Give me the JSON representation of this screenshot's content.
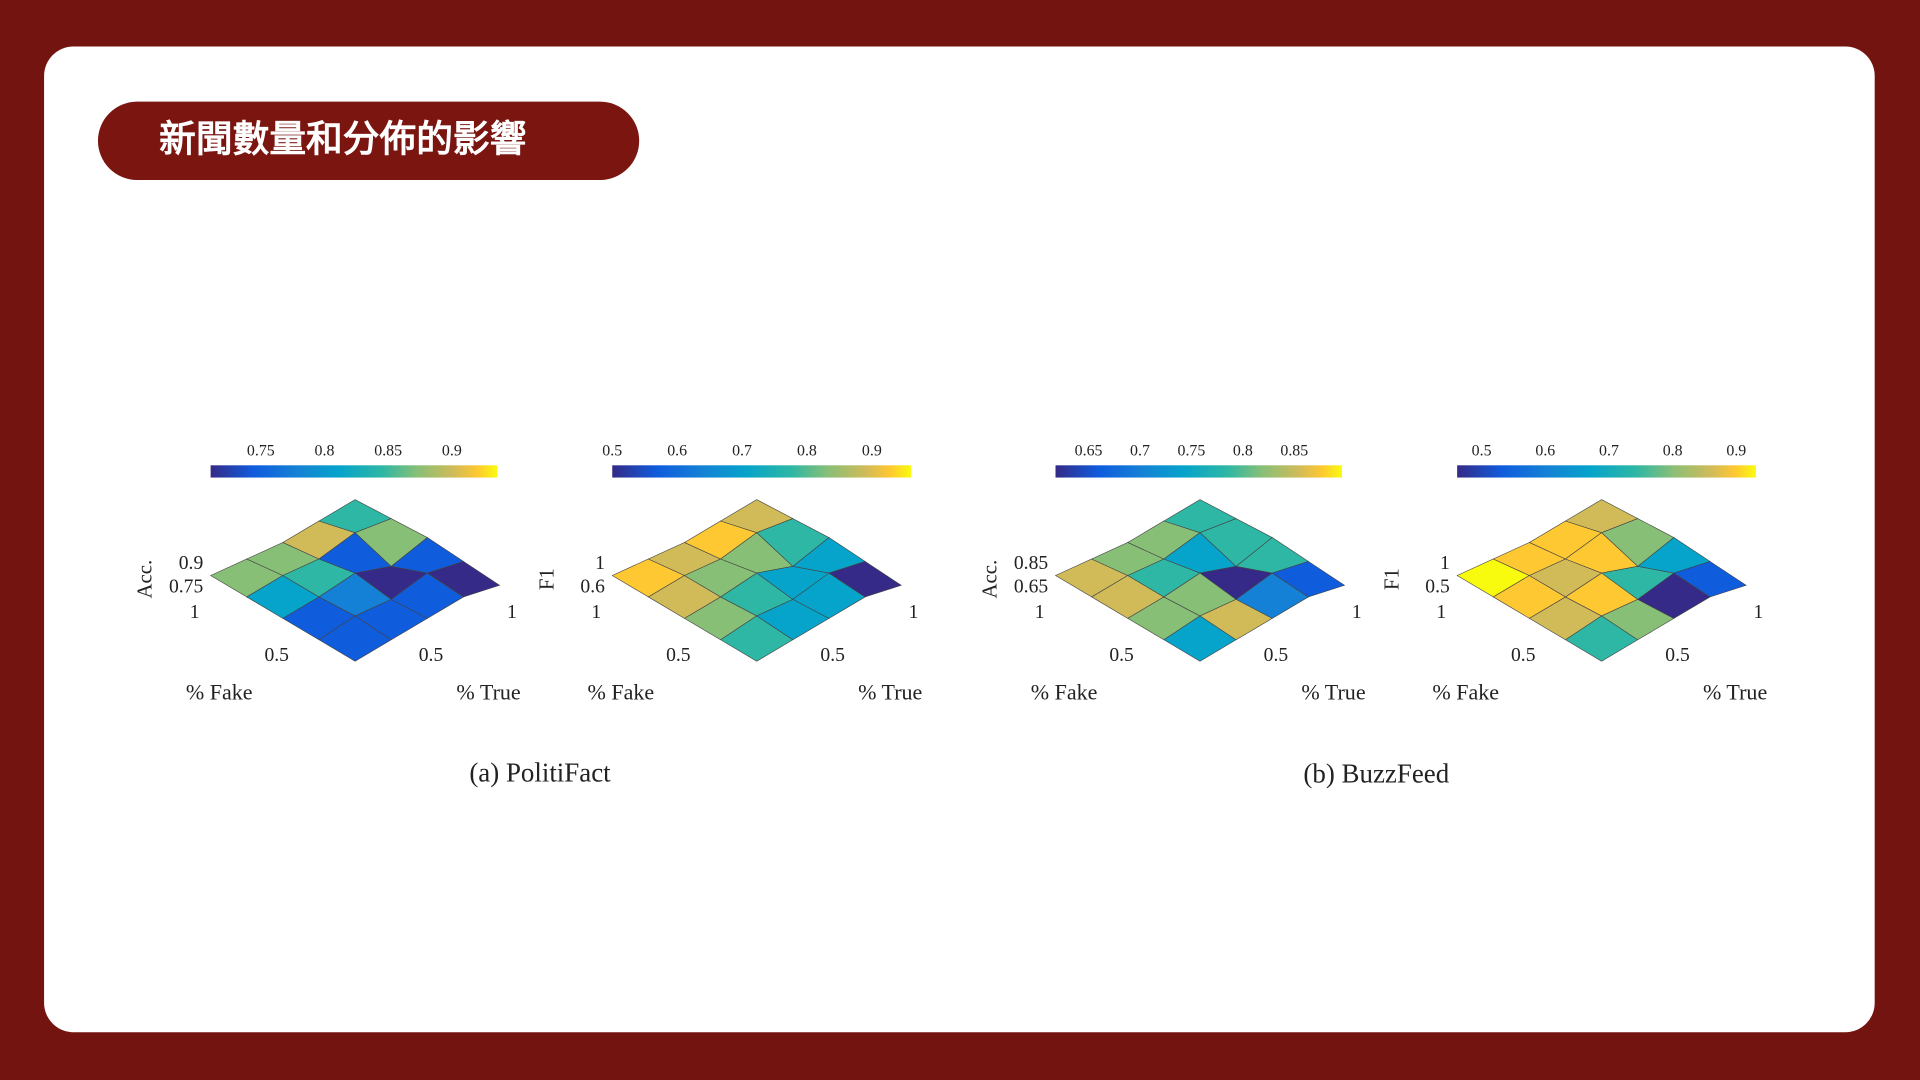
{
  "header": {
    "title": "新聞數量和分佈的影響"
  },
  "figure": {
    "panels": [
      {
        "colorbar_ticks": [
          "0.75",
          "0.8",
          "0.85",
          "0.9"
        ],
        "z_label": "Acc.",
        "z_ticks": [
          "0.9",
          "0.75"
        ],
        "fake_ticks": [
          "1",
          "0.5"
        ],
        "fake_label": "% Fake",
        "true_ticks": [
          "0.5",
          "1"
        ],
        "true_label": "% True"
      },
      {
        "colorbar_ticks": [
          "0.5",
          "0.6",
          "0.7",
          "0.8",
          "0.9"
        ],
        "z_label": "F1",
        "z_ticks": [
          "1",
          "0.6"
        ],
        "fake_ticks": [
          "1",
          "0.5"
        ],
        "fake_label": "% Fake",
        "true_ticks": [
          "0.5",
          "1"
        ],
        "true_label": "% True"
      },
      {
        "colorbar_ticks": [
          "0.65",
          "0.7",
          "0.75",
          "0.8",
          "0.85"
        ],
        "z_label": "Acc.",
        "z_ticks": [
          "0.85",
          "0.65"
        ],
        "fake_ticks": [
          "1",
          "0.5"
        ],
        "fake_label": "% Fake",
        "true_ticks": [
          "0.5",
          "1"
        ],
        "true_label": "% True"
      },
      {
        "colorbar_ticks": [
          "0.5",
          "0.6",
          "0.7",
          "0.8",
          "0.9"
        ],
        "z_label": "F1",
        "z_ticks": [
          "1",
          "0.5"
        ],
        "fake_ticks": [
          "1",
          "0.5"
        ],
        "fake_label": "% Fake",
        "true_ticks": [
          "0.5",
          "1"
        ],
        "true_label": "% True"
      }
    ],
    "captions": [
      "(a) PolitiFact",
      "(b) BuzzFeed"
    ]
  }
}
